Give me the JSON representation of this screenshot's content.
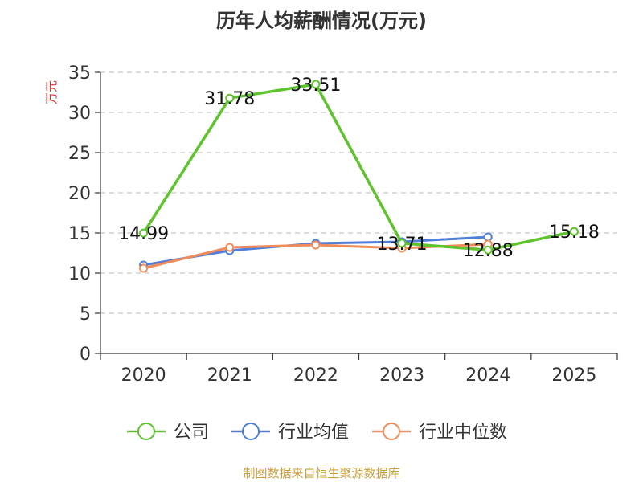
{
  "chart_data": {
    "type": "line",
    "title": "历年人均薪酬情况(万元)",
    "ylabel": "万元",
    "xlabel": "",
    "ylim": [
      0,
      35
    ],
    "yticks": [
      0,
      5,
      10,
      15,
      20,
      25,
      30,
      35
    ],
    "categories": [
      "2020",
      "2021",
      "2022",
      "2023",
      "2024",
      "2025"
    ],
    "grid": true,
    "legend_position": "bottom",
    "series": [
      {
        "name": "公司",
        "color": "#5ec42c",
        "values": [
          14.99,
          31.78,
          33.51,
          13.71,
          12.88,
          15.18
        ],
        "labels": [
          "14.99",
          "31.78",
          "33.51",
          "13.71",
          "12.88",
          "15.18"
        ]
      },
      {
        "name": "行业均值",
        "color": "#4f7fd8",
        "values": [
          11.0,
          12.8,
          13.7,
          13.9,
          14.5,
          null
        ]
      },
      {
        "name": "行业中位数",
        "color": "#f08c5a",
        "values": [
          10.6,
          13.2,
          13.5,
          13.1,
          13.6,
          null
        ]
      }
    ]
  },
  "source": "制图数据来自恒生聚源数据库"
}
